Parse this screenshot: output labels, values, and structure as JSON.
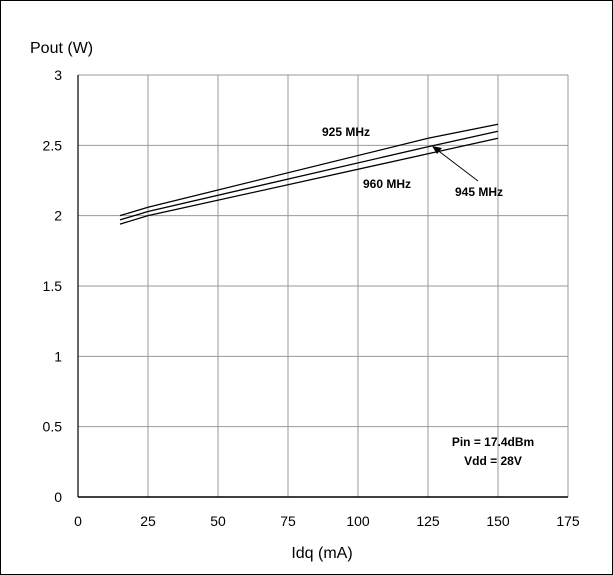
{
  "chart_data": {
    "type": "line",
    "title": "",
    "xlabel": "Idq (mA)",
    "ylabel": "Pout (W)",
    "xlim": [
      0,
      175
    ],
    "ylim": [
      0,
      3
    ],
    "xticks": [
      0,
      25,
      50,
      75,
      100,
      125,
      150,
      175
    ],
    "yticks": [
      0,
      0.5,
      1,
      1.5,
      2,
      2.5,
      3
    ],
    "xtick_labels": [
      "0",
      "25",
      "50",
      "75",
      "100",
      "125",
      "150",
      "175"
    ],
    "ytick_labels": [
      "0",
      "0.5",
      "1",
      "1.5",
      "2",
      "2.5",
      "3"
    ],
    "grid": true,
    "series": [
      {
        "name": "925 MHz",
        "x": [
          15,
          25,
          125,
          150
        ],
        "y": [
          2.0,
          2.06,
          2.55,
          2.65
        ]
      },
      {
        "name": "945 MHz",
        "x": [
          15,
          25,
          125,
          150
        ],
        "y": [
          1.97,
          2.03,
          2.49,
          2.6
        ]
      },
      {
        "name": "960 MHz",
        "x": [
          15,
          25,
          125,
          150
        ],
        "y": [
          1.94,
          2.0,
          2.44,
          2.55
        ]
      }
    ],
    "annotations": {
      "conditions_line1": "Pin = 17.4dBm",
      "conditions_line2": "Vdd = 28V"
    }
  }
}
